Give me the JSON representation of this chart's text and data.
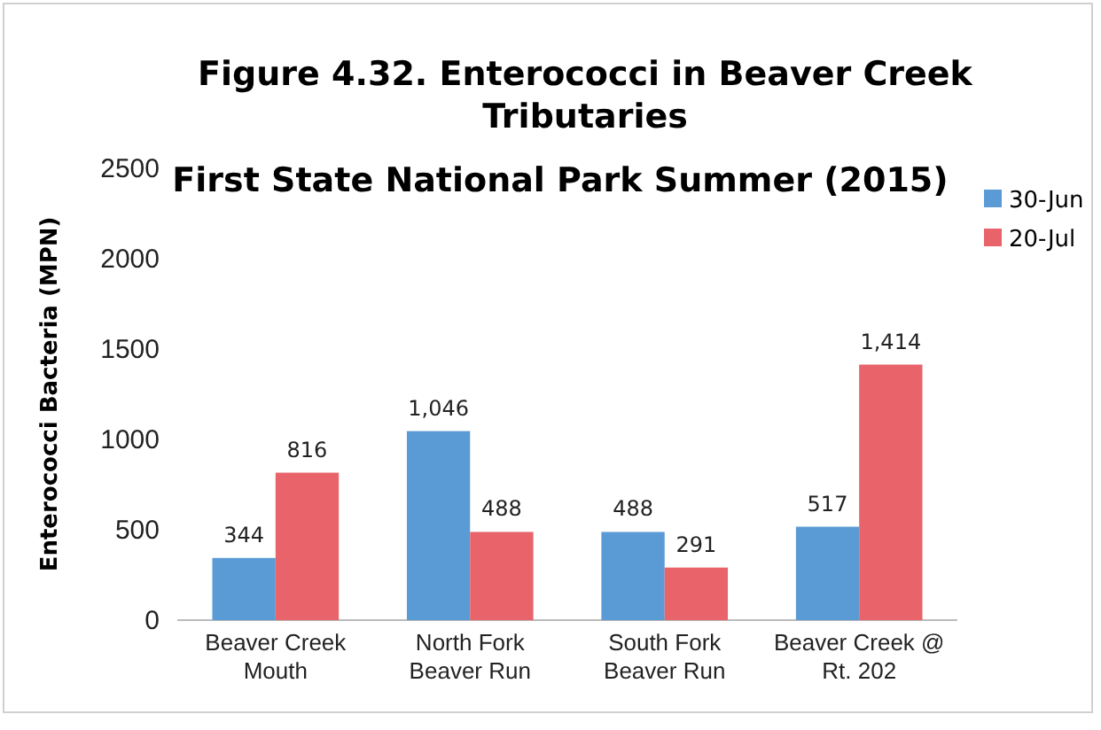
{
  "chart_data": {
    "type": "bar",
    "title": "Figure 4.32. Enterococci in Beaver Creek Tributaries",
    "subtitle": "First State National Park Summer (2015)",
    "ylabel": "Enterococci Bacteria (MPN)",
    "categories": [
      "Beaver Creek Mouth",
      "North Fork Beaver Run",
      "South Fork Beaver Run",
      "Beaver Creek @ Rt. 202"
    ],
    "series": [
      {
        "name": "30-Jun",
        "color": "#5b9bd5",
        "values": [
          344,
          1046,
          488,
          517
        ],
        "value_labels": [
          "344",
          "1,046",
          "488",
          "517"
        ]
      },
      {
        "name": "20-Jul",
        "color": "#e8636a",
        "values": [
          816,
          488,
          291,
          1414
        ],
        "value_labels": [
          "816",
          "488",
          "291",
          "1,414"
        ]
      }
    ],
    "ylim": [
      0,
      2500
    ],
    "yticks": [
      0,
      500,
      1000,
      1500,
      2000,
      2500
    ],
    "grid": false,
    "legend": "top right"
  }
}
